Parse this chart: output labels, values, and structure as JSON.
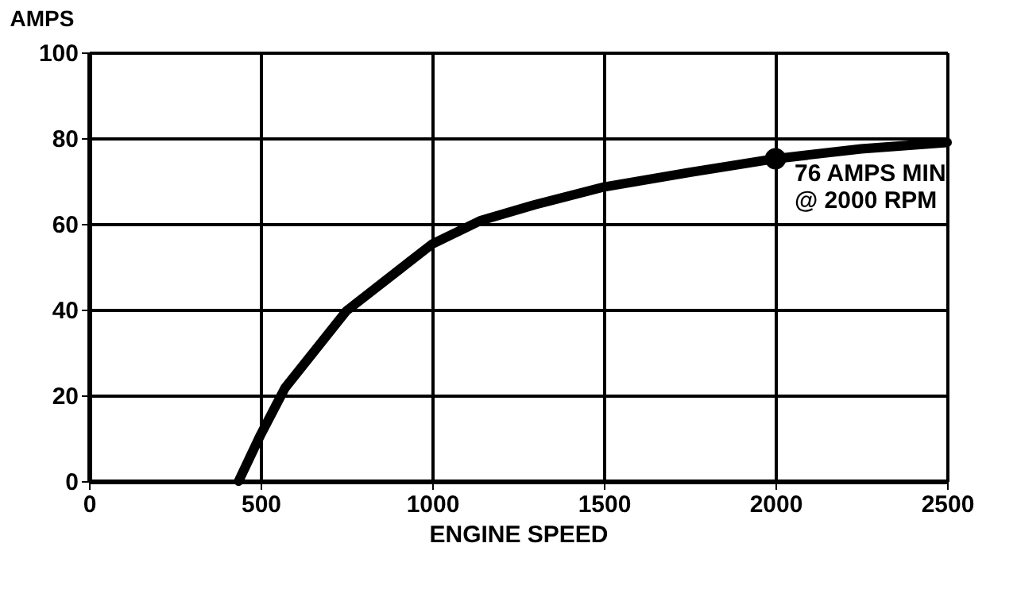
{
  "chart_data": {
    "type": "line",
    "xlabel": "ENGINE SPEED",
    "ylabel": "AMPS",
    "xlim": [
      0,
      2500
    ],
    "ylim": [
      0,
      100
    ],
    "xticks": [
      0,
      500,
      1000,
      1500,
      2000,
      2500
    ],
    "yticks": [
      0,
      20,
      40,
      60,
      80,
      100
    ],
    "grid": true,
    "line_style": "solid",
    "marker": "none",
    "series": [
      {
        "color": "#000000",
        "x": [
          436,
          500,
          571,
          750,
          1000,
          1142,
          1300,
          1500,
          1750,
          2000,
          2250,
          2500
        ],
        "values": [
          0,
          10.8,
          21.7,
          39.7,
          55.3,
          60.8,
          64.5,
          68.6,
          72,
          75.2,
          77.5,
          79
        ]
      },
      {
        "type": "scatter",
        "color": "#000000",
        "marker": "circle",
        "x": [
          2000
        ],
        "values": [
          75.2
        ]
      }
    ],
    "annotations": [
      {
        "text": "76 AMPS MIN\n@ 2000 RPM",
        "x": 2000,
        "y": 75.2
      }
    ]
  }
}
